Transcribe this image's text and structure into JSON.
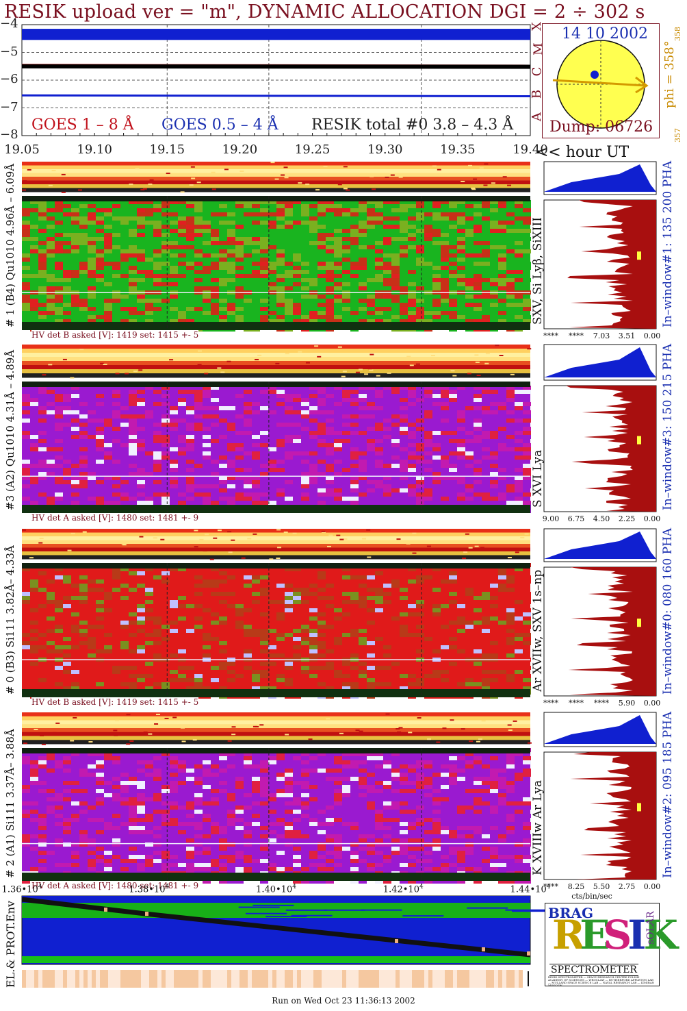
{
  "header": {
    "title": "RESIK upload ver = \"m\", DYNAMIC ALLOCATION  DGI =   2 ÷ 302 s"
  },
  "goes": {
    "y_ticks": [
      "−4",
      "−5",
      "−6",
      "−7",
      "−8"
    ],
    "legend_1": "GOES 1 – 8 Å",
    "legend_2": "GOES 0.5 – 4 Å",
    "legend_3": "RESIK total #0  3.8 – 4.3 Å",
    "class_letters": [
      "X",
      "M",
      "C",
      "B",
      "A"
    ]
  },
  "sun": {
    "date": "14 10 2002",
    "dump": "Dump: 06726",
    "phi": "phi = 358°",
    "phi_sub_top": "358",
    "phi_sub_bottom": "357"
  },
  "time_axis": {
    "ticks": [
      "19.05",
      "19.10",
      "19.15",
      "19.20",
      "19.25",
      "19.30",
      "19.35",
      "19.40"
    ],
    "unit_label": "<< hour UT"
  },
  "panels": [
    {
      "ylabel": "# 1 (B4) Qu1010 4.96Å – 6.09Å",
      "hv": "HV det B asked [V]:  1419 set:  1415  +-    5",
      "line_label": "SXV, Si Lyβ, SiXIII",
      "window": "In–window#1:  135 200 PHA",
      "pha_ticks": [
        "****",
        "****",
        "7.03",
        "3.51",
        "0.00"
      ]
    },
    {
      "ylabel": "#3 (A2) Qu1010  4.31Å – 4.89Å",
      "hv": "HV det A asked [V]:  1480 set:  1481  +-    9",
      "line_label": "S XVI Lya",
      "window": "In–window#3:  150 215 PHA",
      "pha_ticks": [
        "9.00",
        "6.75",
        "4.50",
        "2.25",
        "0.00"
      ]
    },
    {
      "ylabel": "# 0 (B3) Si111  3.82Å– 4.33Å",
      "hv": "HV det B asked [V]:  1419 set:  1415  +-    5",
      "line_label": "Ar XVIIw,  SXV 1s–np",
      "window": "In–window#0:  080 160 PHA",
      "pha_ticks": [
        "****",
        "****",
        "****",
        "5.90",
        "0.00"
      ]
    },
    {
      "ylabel": "# 2 (A1) Si111  3.37Å– 3.88Å",
      "hv": "HV det A asked [V]:  1480 set:  1481  +-    9",
      "line_label": "K XVIIIw  Ar Lya",
      "window": "In–window#2:  095 185 PHA",
      "pha_ticks": [
        "****",
        "8.25",
        "5.50",
        "2.75",
        "0.00"
      ],
      "pha_unit": "cts/bin/sec"
    }
  ],
  "env": {
    "ylabel": "EL.& PROT.Env",
    "x_ticks": [
      "1.36•10",
      "1.38•10",
      "1.40•10",
      "1.42•10",
      "1.44•10"
    ],
    "exp": "4"
  },
  "logo": {
    "top_left": "BRAG",
    "letters": [
      "R",
      "E",
      "S",
      "I",
      "K"
    ],
    "solar": "sOLAR",
    "caption": "SPECTROMETER",
    "fine_print": "RESIK SPECTROMETER — SPACE RESEARCH CENTRE POLISH ACADEMY OF SCIENCES — WROCLAW — RUTHERFORD APPLETON LAB — MULLARD SPACE SCIENCE LAB — NAVAL RESEARCH LAB — IZMIRAN MOSCOW"
  },
  "footer": {
    "run": "Run on Wed Oct 23 11:36:13 2002"
  },
  "chart_data": {
    "type": "line",
    "title": "RESIK upload ver = \"m\", DYNAMIC ALLOCATION  DGI =   2 ÷ 302 s",
    "x_range": [
      19.05,
      19.4
    ],
    "ylim": [
      -8,
      -4
    ],
    "series": [
      {
        "name": "GOES 1 – 8 Å",
        "color": "#e01010",
        "x": [
          19.05,
          19.4
        ],
        "y": [
          -5.45,
          -5.48
        ]
      },
      {
        "name": "GOES 0.5 – 4 Å",
        "color": "#1020d0",
        "x": [
          19.05,
          19.4
        ],
        "y": [
          -6.55,
          -6.58
        ]
      },
      {
        "name": "RESIK total #0  3.8 – 4.3 Å",
        "color": "#000000",
        "x": [
          19.05,
          19.4
        ],
        "y": [
          -5.5,
          -5.52
        ]
      }
    ],
    "grid": true,
    "colors": {
      "heat_red": "#d81818",
      "heat_green": "#18b018",
      "heat_purple": "#9a1ad0",
      "pha_fill": "#a80f0f",
      "pha_blue": "#1020d0"
    }
  }
}
